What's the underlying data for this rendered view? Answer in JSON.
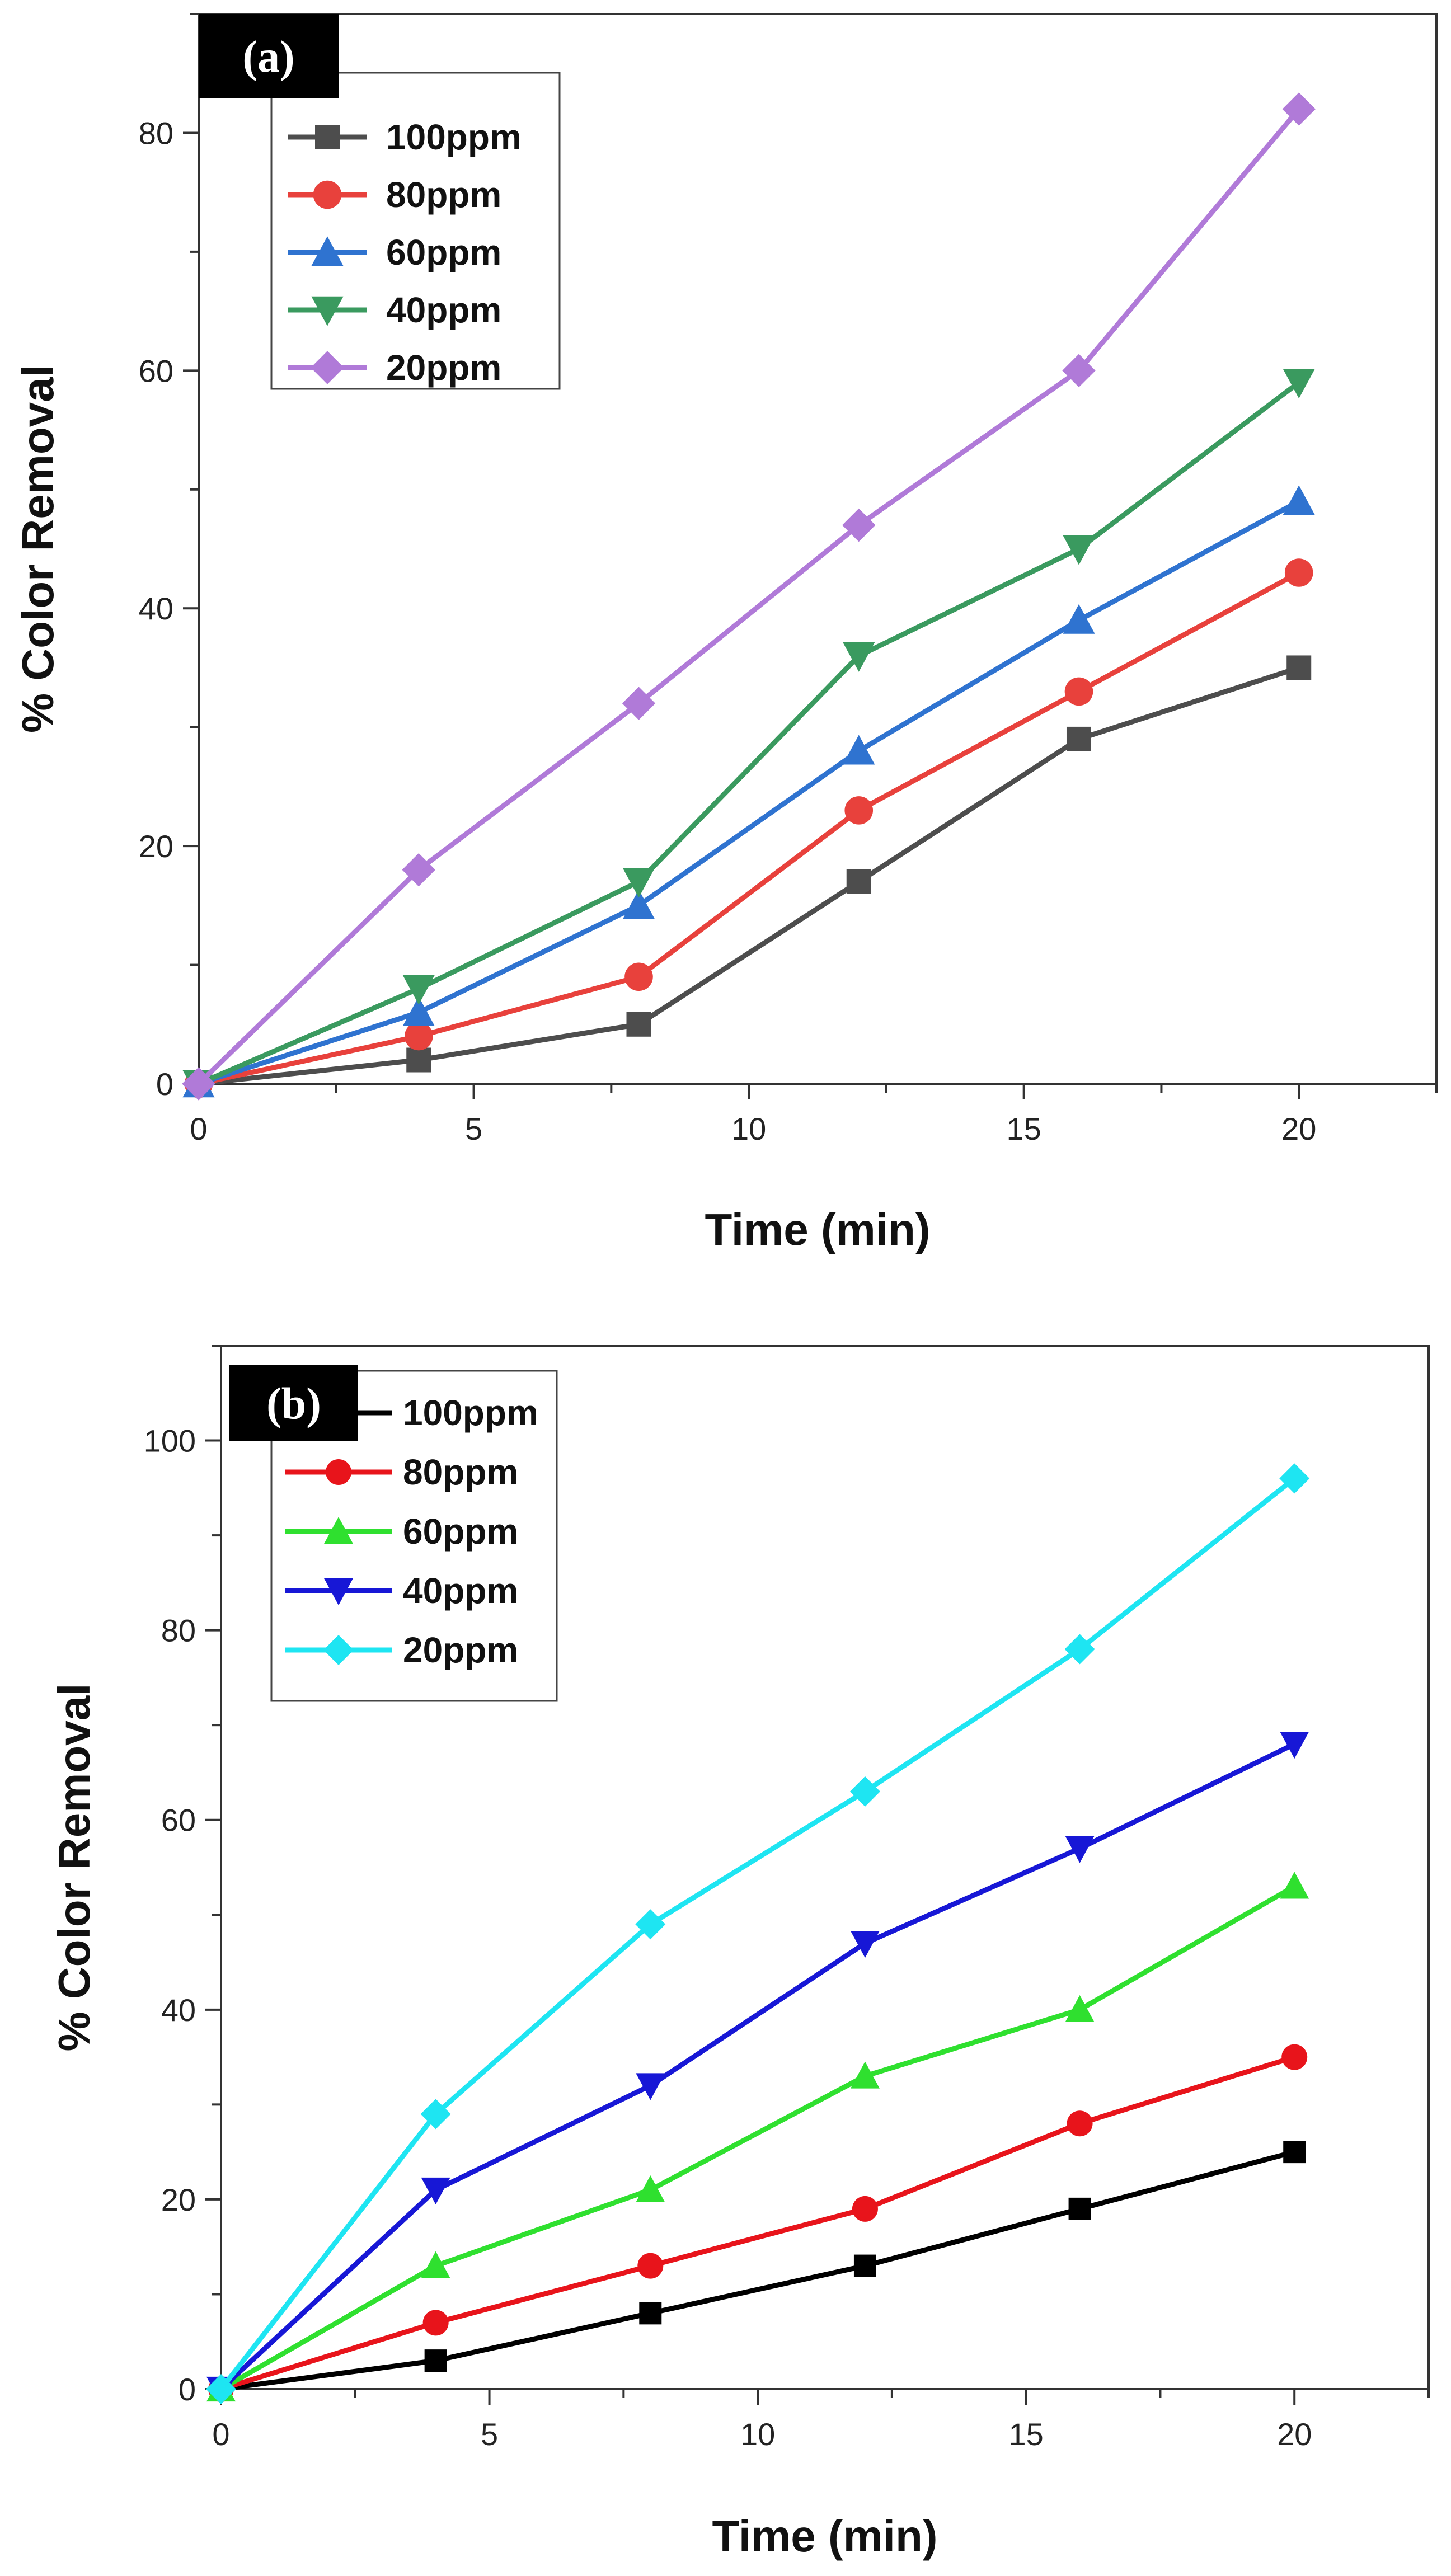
{
  "chart_data": [
    {
      "type": "line",
      "panel_label": "(a)",
      "xlabel": "Time (min)",
      "ylabel": "% Color Removal",
      "xlim": [
        0,
        22.5
      ],
      "ylim": [
        0,
        90
      ],
      "xticks": [
        0,
        5,
        10,
        15,
        20
      ],
      "yticks": [
        0,
        20,
        40,
        60,
        80
      ],
      "x": [
        0,
        4,
        8,
        12,
        16,
        20
      ],
      "legend_position": "top-left",
      "series": [
        {
          "name": "100ppm",
          "color": "#4d4d4d",
          "marker": "square",
          "values": [
            0,
            2,
            5,
            17,
            29,
            35
          ]
        },
        {
          "name": "80ppm",
          "color": "#e8413c",
          "marker": "circle",
          "values": [
            0,
            4,
            9,
            23,
            33,
            43
          ]
        },
        {
          "name": "60ppm",
          "color": "#2f73d0",
          "marker": "triangle-up",
          "values": [
            0,
            6,
            15,
            28,
            39,
            49
          ]
        },
        {
          "name": "40ppm",
          "color": "#3a9a5f",
          "marker": "triangle-down",
          "values": [
            0,
            8,
            17,
            36,
            45,
            59
          ]
        },
        {
          "name": "20ppm",
          "color": "#b07ad8",
          "marker": "diamond",
          "values": [
            0,
            18,
            32,
            47,
            60,
            82
          ]
        }
      ]
    },
    {
      "type": "line",
      "panel_label": "(b)",
      "xlabel": "Time (min)",
      "ylabel": "% Color Removal",
      "xlim": [
        0,
        22.5
      ],
      "ylim": [
        0,
        110
      ],
      "xticks": [
        0,
        5,
        10,
        15,
        20
      ],
      "yticks": [
        0,
        20,
        40,
        60,
        80,
        100
      ],
      "x": [
        0,
        4,
        8,
        12,
        16,
        20
      ],
      "legend_position": "top-left",
      "series": [
        {
          "name": "100ppm",
          "color": "#000000",
          "marker": "square",
          "values": [
            0,
            3,
            8,
            13,
            19,
            25
          ]
        },
        {
          "name": "80ppm",
          "color": "#e8141b",
          "marker": "circle",
          "values": [
            0,
            7,
            13,
            19,
            28,
            35
          ]
        },
        {
          "name": "60ppm",
          "color": "#2fe02f",
          "marker": "triangle-up",
          "values": [
            0,
            13,
            21,
            33,
            40,
            53
          ]
        },
        {
          "name": "40ppm",
          "color": "#1717d6",
          "marker": "triangle-down",
          "values": [
            0,
            21,
            32,
            47,
            57,
            68
          ]
        },
        {
          "name": "20ppm",
          "color": "#1ee5f2",
          "marker": "diamond",
          "values": [
            0,
            29,
            49,
            63,
            78,
            96
          ]
        }
      ]
    }
  ]
}
